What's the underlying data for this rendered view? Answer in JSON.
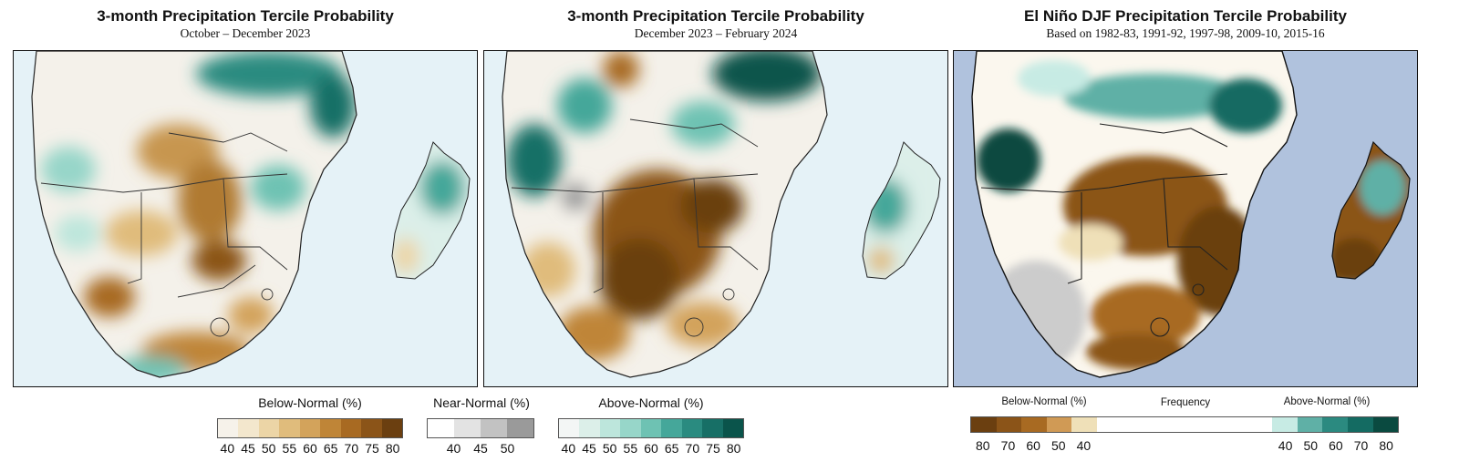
{
  "panels": [
    {
      "title": "3-month Precipitation Tercile Probability",
      "subtitle": "October – December 2023"
    },
    {
      "title": "3-month Precipitation Tercile Probability",
      "subtitle": "December 2023 – February 2024"
    },
    {
      "title": "El Niño DJF Precipitation Tercile Probability",
      "subtitle": "Based on 1982-83, 1991-92, 1997-98, 2009-10, 2015-16"
    }
  ],
  "legend_forecast": {
    "below": {
      "label": "Below-Normal (%)",
      "ticks": [
        "40",
        "45",
        "50",
        "55",
        "60",
        "65",
        "70",
        "75",
        "80"
      ],
      "colors": [
        "#f6f2ea",
        "#f3e7cd",
        "#ecd5a6",
        "#e0bc7c",
        "#d3a35b",
        "#bf8537",
        "#a86a22",
        "#8b5418",
        "#6b3f10"
      ]
    },
    "near": {
      "label": "Near-Normal (%)",
      "ticks": [
        "40",
        "45",
        "50"
      ],
      "colors": [
        "#ffffff",
        "#e3e3e3",
        "#c2c2c2",
        "#9a9a9a"
      ]
    },
    "above": {
      "label": "Above-Normal (%)",
      "ticks": [
        "40",
        "45",
        "50",
        "55",
        "60",
        "65",
        "70",
        "75",
        "80"
      ],
      "colors": [
        "#f3f6f5",
        "#dcefe9",
        "#bde6dc",
        "#97d6c9",
        "#6ec2b3",
        "#45a79a",
        "#2a8b80",
        "#176f66",
        "#0a544b"
      ]
    }
  },
  "legend_elnino": {
    "below_label": "Below-Normal (%)",
    "frequency_label": "Frequency",
    "above_label": "Above-Normal (%)",
    "below_ticks": [
      "80",
      "70",
      "60",
      "50",
      "40"
    ],
    "above_ticks": [
      "40",
      "50",
      "60",
      "70",
      "80"
    ],
    "below_colors": [
      "#6b3f10",
      "#8b5418",
      "#a86a22",
      "#d09a55",
      "#efe0b8"
    ],
    "above_colors": [
      "#c7ebe4",
      "#5fb0a6",
      "#2b8a80",
      "#146b62",
      "#0a4a40"
    ]
  }
}
